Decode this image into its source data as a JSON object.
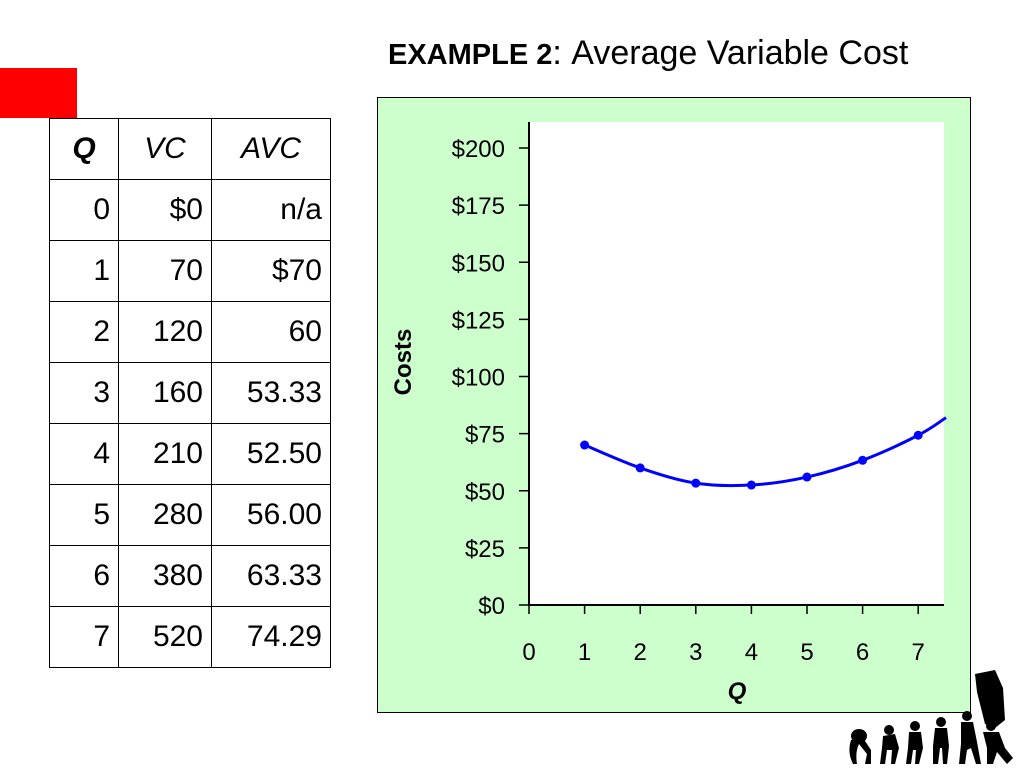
{
  "title": {
    "prefix": "EXAMPLE 2",
    "separator": ":",
    "text": "Average Variable Cost"
  },
  "table": {
    "headers": [
      "Q",
      "VC",
      "AVC"
    ],
    "rows": [
      [
        "0",
        "$0",
        "n/a"
      ],
      [
        "1",
        "70",
        "$70"
      ],
      [
        "2",
        "120",
        "60"
      ],
      [
        "3",
        "160",
        "53.33"
      ],
      [
        "4",
        "210",
        "52.50"
      ],
      [
        "5",
        "280",
        "56.00"
      ],
      [
        "6",
        "380",
        "63.33"
      ],
      [
        "7",
        "520",
        "74.29"
      ]
    ]
  },
  "colors": {
    "accent_red": "#ff0000",
    "panel_bg": "#ccffcc",
    "plot_bg": "#ffffff",
    "line": "#0000ff"
  },
  "chart_data": {
    "type": "line",
    "title": "",
    "xlabel": "Q",
    "ylabel": "Costs",
    "xlim": [
      0,
      7.3
    ],
    "ylim": [
      0,
      210
    ],
    "x_ticks": [
      0,
      1,
      2,
      3,
      4,
      5,
      6,
      7
    ],
    "x_tick_labels": [
      "0",
      "1",
      "2",
      "3",
      "4",
      "5",
      "6",
      "7"
    ],
    "y_ticks": [
      0,
      25,
      50,
      75,
      100,
      125,
      150,
      175,
      200
    ],
    "y_tick_labels": [
      "$0",
      "$25",
      "$50",
      "$75",
      "$100",
      "$125",
      "$150",
      "$175",
      "$200"
    ],
    "grid": false,
    "series": [
      {
        "name": "",
        "points": [
          {
            "x": 1,
            "y": 70
          },
          {
            "x": 2,
            "y": 60
          },
          {
            "x": 3,
            "y": 53.33
          },
          {
            "x": 4,
            "y": 52.5
          },
          {
            "x": 5,
            "y": 56
          },
          {
            "x": 6,
            "y": 63.33
          },
          {
            "x": 7,
            "y": 74.29
          }
        ],
        "curve_extends_to": {
          "x": 7.5,
          "y": 82
        }
      }
    ]
  },
  "decoration": {
    "figure_icon": "human-evolution-silhouette-icon"
  }
}
